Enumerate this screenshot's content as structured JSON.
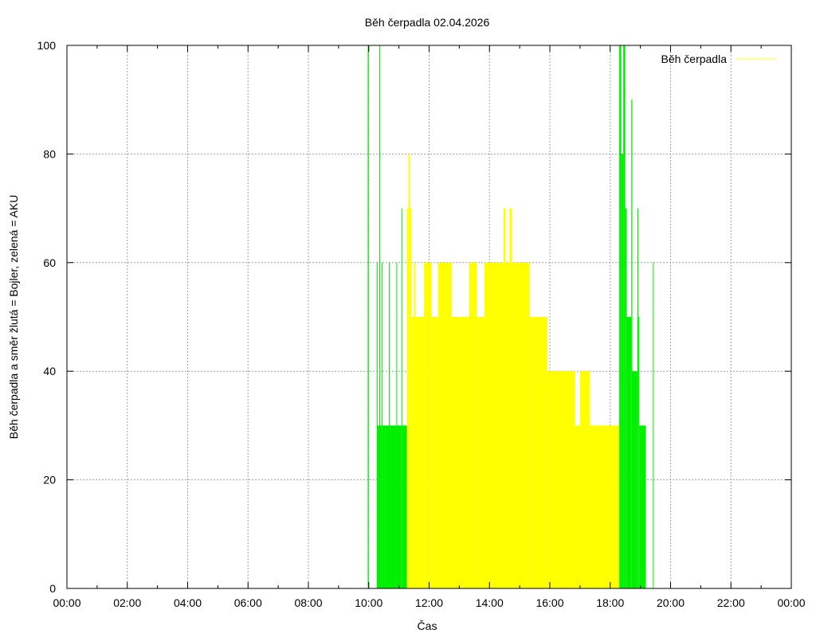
{
  "chart_data": {
    "type": "area",
    "title": "Běh čerpadla 02.04.2026",
    "xlabel": "Čas",
    "ylabel": "Běh čerpadla a směr žlutá = Bojler, zelená = AKU",
    "xlim": [
      "00:00",
      "24:00"
    ],
    "ylim": [
      0,
      100
    ],
    "x_ticks": [
      "00:00",
      "02:00",
      "04:00",
      "06:00",
      "08:00",
      "10:00",
      "12:00",
      "14:00",
      "16:00",
      "18:00",
      "20:00",
      "22:00",
      "00:00"
    ],
    "y_ticks": [
      "0",
      "20",
      "40",
      "60",
      "80",
      "100"
    ],
    "grid": true,
    "legend": {
      "position": "top-right",
      "entries": [
        "Běh čerpadla"
      ]
    },
    "colors": {
      "bojler": "#ffff00",
      "aku": "#00ee00",
      "grid": "#a0a0a0",
      "axis": "#000000"
    },
    "series": [
      {
        "color": "aku",
        "segments": [
          {
            "start": "09:58",
            "end": "10:00",
            "value": 100
          },
          {
            "start": "10:16",
            "end": "10:17",
            "value": 60
          },
          {
            "start": "10:17",
            "end": "10:21",
            "value": 30
          },
          {
            "start": "10:21",
            "end": "10:22",
            "value": 100
          },
          {
            "start": "10:22",
            "end": "10:26",
            "value": 30
          },
          {
            "start": "10:26",
            "end": "10:27",
            "value": 60
          },
          {
            "start": "10:27",
            "end": "10:33",
            "value": 30
          },
          {
            "start": "10:33",
            "end": "10:34",
            "value": 30
          },
          {
            "start": "10:34",
            "end": "10:40",
            "value": 30
          },
          {
            "start": "10:40",
            "end": "10:41",
            "value": 60
          },
          {
            "start": "10:41",
            "end": "10:55",
            "value": 30
          },
          {
            "start": "10:55",
            "end": "10:56",
            "value": 60
          },
          {
            "start": "10:56",
            "end": "11:05",
            "value": 30
          },
          {
            "start": "11:05",
            "end": "11:06",
            "value": 70
          },
          {
            "start": "11:06",
            "end": "11:16",
            "value": 30
          },
          {
            "start": "18:18",
            "end": "18:22",
            "value": 100
          },
          {
            "start": "18:22",
            "end": "18:26",
            "value": 80
          },
          {
            "start": "18:26",
            "end": "18:30",
            "value": 100
          },
          {
            "start": "18:30",
            "end": "18:33",
            "value": 70
          },
          {
            "start": "18:33",
            "end": "18:42",
            "value": 50
          },
          {
            "start": "18:42",
            "end": "18:44",
            "value": 90
          },
          {
            "start": "18:44",
            "end": "18:54",
            "value": 40
          },
          {
            "start": "18:54",
            "end": "18:56",
            "value": 70
          },
          {
            "start": "18:56",
            "end": "18:58",
            "value": 50
          },
          {
            "start": "18:58",
            "end": "19:11",
            "value": 30
          },
          {
            "start": "19:25",
            "end": "19:26",
            "value": 60
          }
        ]
      },
      {
        "color": "bojler",
        "segments": [
          {
            "start": "11:16",
            "end": "11:19",
            "value": 70
          },
          {
            "start": "11:19",
            "end": "11:22",
            "value": 80
          },
          {
            "start": "11:22",
            "end": "11:25",
            "value": 70
          },
          {
            "start": "11:25",
            "end": "11:30",
            "value": 50
          },
          {
            "start": "11:30",
            "end": "11:33",
            "value": 60
          },
          {
            "start": "11:33",
            "end": "11:50",
            "value": 50
          },
          {
            "start": "11:50",
            "end": "12:05",
            "value": 60
          },
          {
            "start": "12:05",
            "end": "12:18",
            "value": 50
          },
          {
            "start": "12:18",
            "end": "12:45",
            "value": 60
          },
          {
            "start": "12:45",
            "end": "13:20",
            "value": 50
          },
          {
            "start": "13:20",
            "end": "13:35",
            "value": 60
          },
          {
            "start": "13:35",
            "end": "13:50",
            "value": 50
          },
          {
            "start": "13:50",
            "end": "14:28",
            "value": 60
          },
          {
            "start": "14:28",
            "end": "14:32",
            "value": 70
          },
          {
            "start": "14:32",
            "end": "14:40",
            "value": 60
          },
          {
            "start": "14:40",
            "end": "14:45",
            "value": 70
          },
          {
            "start": "14:45",
            "end": "15:20",
            "value": 60
          },
          {
            "start": "15:20",
            "end": "15:55",
            "value": 50
          },
          {
            "start": "15:55",
            "end": "16:50",
            "value": 40
          },
          {
            "start": "16:50",
            "end": "17:00",
            "value": 30
          },
          {
            "start": "17:00",
            "end": "17:20",
            "value": 40
          },
          {
            "start": "17:20",
            "end": "18:18",
            "value": 30
          }
        ]
      }
    ]
  }
}
